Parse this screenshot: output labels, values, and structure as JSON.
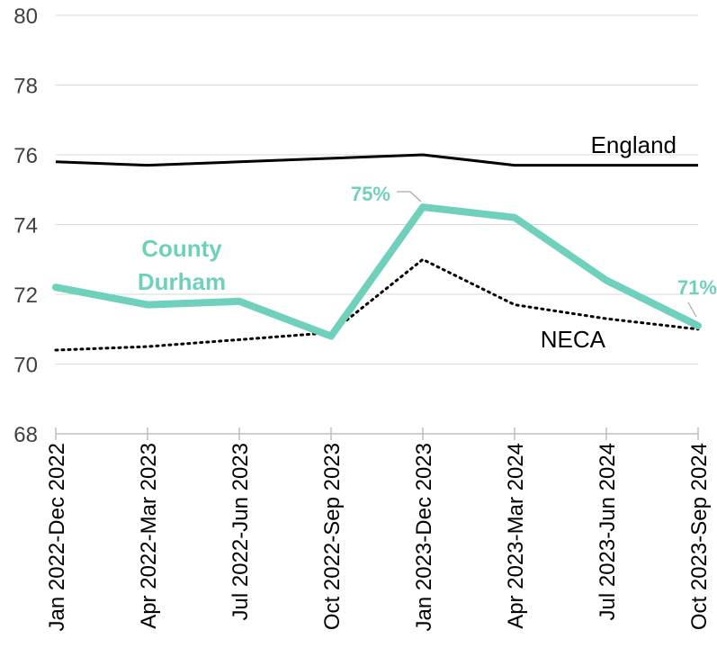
{
  "chart_data": {
    "type": "line",
    "categories": [
      "Jan 2022-Dec 2022",
      "Apr 2022-Mar 2023",
      "Jul 2022-Jun 2023",
      "Oct 2022-Sep 2023",
      "Jan 2023-Dec 2023",
      "Apr 2023-Mar 2024",
      "Jul 2023-Jun 2024",
      "Oct 2023-Sep 2024"
    ],
    "ylim": [
      68,
      80
    ],
    "yticks": [
      "68",
      "70",
      "72",
      "74",
      "76",
      "78",
      "80"
    ],
    "grid": true,
    "series": [
      {
        "name": "England",
        "style": "solid",
        "color": "#000000",
        "values": [
          75.8,
          75.7,
          75.8,
          75.9,
          76.0,
          75.7,
          75.7,
          75.7
        ]
      },
      {
        "name": "County Durham",
        "style": "thick",
        "color": "#6fd1bb",
        "values": [
          72.2,
          71.7,
          71.8,
          70.8,
          74.5,
          74.2,
          72.4,
          71.1
        ]
      },
      {
        "name": "NECA",
        "style": "dotted",
        "color": "#000000",
        "values": [
          70.4,
          70.5,
          70.7,
          70.9,
          73.0,
          71.7,
          71.3,
          71.0
        ]
      }
    ],
    "labels": {
      "england": "England",
      "county_durham_line1": "County",
      "county_durham_line2": "Durham",
      "neca": "NECA"
    },
    "annotations": [
      {
        "text": "75%",
        "category_index": 4,
        "color": "#6fd1bb"
      },
      {
        "text": "71%",
        "category_index": 7,
        "color": "#6fd1bb"
      }
    ]
  }
}
